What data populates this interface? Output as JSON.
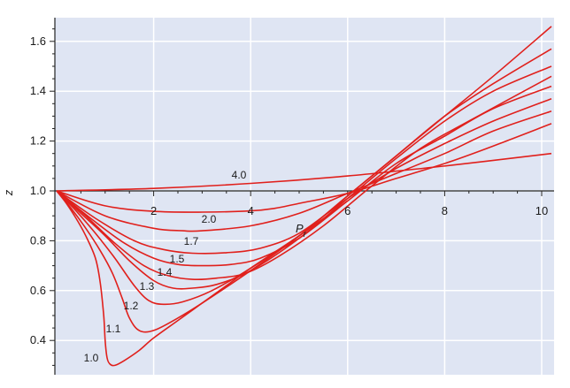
{
  "chart_data": {
    "type": "line",
    "xlabel": "P",
    "xlabel_sub": "r",
    "ylabel": "z",
    "xlim": [
      0,
      10.3
    ],
    "ylim": [
      0.26,
      1.68
    ],
    "x_ticks": [
      2,
      4,
      6,
      8,
      10
    ],
    "x_tick_labels": [
      "2",
      "4",
      "6",
      "8",
      "10"
    ],
    "y_ticks": [
      0.4,
      0.6,
      0.8,
      1.0,
      1.2,
      1.4,
      1.6
    ],
    "y_tick_labels": [
      "0.4",
      "0.6",
      "0.8",
      "1.0",
      "1.2",
      "1.4",
      "1.6"
    ],
    "grid": true,
    "colors": {
      "line": "#e0201c",
      "plot_bg": "#dfe5f3",
      "grid": "#ffffff",
      "axis": "#222222"
    },
    "series": [
      {
        "name": "4.0",
        "x": [
          0,
          2,
          4,
          6,
          8,
          10.2
        ],
        "y": [
          1.0,
          1.01,
          1.03,
          1.06,
          1.1,
          1.15
        ]
      },
      {
        "name": "",
        "x": [
          0,
          1,
          2,
          3,
          4,
          4.5,
          5,
          6,
          7,
          8,
          9,
          10.2
        ],
        "y": [
          1.0,
          0.94,
          0.918,
          0.915,
          0.92,
          0.93,
          0.95,
          0.99,
          1.05,
          1.11,
          1.18,
          1.27
        ]
      },
      {
        "name": "2.0",
        "x": [
          0,
          1,
          2,
          2.6,
          3,
          4,
          5,
          6,
          7,
          8,
          9,
          10.2
        ],
        "y": [
          1.0,
          0.9,
          0.85,
          0.84,
          0.84,
          0.86,
          0.91,
          0.99,
          1.07,
          1.15,
          1.24,
          1.32
        ]
      },
      {
        "name": "1.7",
        "x": [
          0,
          0.8,
          1.6,
          2.2,
          2.8,
          3.5,
          4.2,
          5,
          6,
          7,
          8,
          9,
          10.2
        ],
        "y": [
          1.0,
          0.89,
          0.8,
          0.765,
          0.75,
          0.752,
          0.77,
          0.83,
          0.97,
          1.09,
          1.19,
          1.28,
          1.37
        ]
      },
      {
        "name": "1.5",
        "x": [
          0,
          0.7,
          1.4,
          2,
          2.5,
          3,
          3.6,
          4.2,
          5,
          6,
          7,
          8,
          9,
          10.2
        ],
        "y": [
          1.0,
          0.89,
          0.79,
          0.73,
          0.705,
          0.7,
          0.705,
          0.73,
          0.81,
          0.96,
          1.11,
          1.22,
          1.33,
          1.42
        ]
      },
      {
        "name": "1.4",
        "x": [
          0,
          0.6,
          1.2,
          1.8,
          2.3,
          2.8,
          3.3,
          3.9,
          4.6,
          5.5,
          6.5,
          7.5,
          8.5,
          10.2
        ],
        "y": [
          1.0,
          0.9,
          0.79,
          0.7,
          0.66,
          0.645,
          0.65,
          0.67,
          0.74,
          0.86,
          1.02,
          1.17,
          1.28,
          1.46
        ]
      },
      {
        "name": "1.3",
        "x": [
          0,
          0.5,
          1,
          1.5,
          2,
          2.4,
          2.8,
          3.3,
          4,
          5,
          6,
          7,
          8,
          9,
          10.2
        ],
        "y": [
          1.0,
          0.91,
          0.82,
          0.72,
          0.64,
          0.61,
          0.61,
          0.625,
          0.68,
          0.81,
          0.97,
          1.13,
          1.28,
          1.4,
          1.5
        ]
      },
      {
        "name": "1.2",
        "x": [
          0,
          0.4,
          0.8,
          1.2,
          1.6,
          1.9,
          2.2,
          2.6,
          3.2,
          4,
          5,
          6,
          7,
          8,
          9,
          10.2
        ],
        "y": [
          1.0,
          0.92,
          0.83,
          0.73,
          0.62,
          0.56,
          0.545,
          0.555,
          0.6,
          0.69,
          0.82,
          0.98,
          1.14,
          1.3,
          1.43,
          1.57
        ]
      },
      {
        "name": "1.1",
        "x": [
          0,
          0.3,
          0.6,
          0.9,
          1.15,
          1.35,
          1.5,
          1.7,
          2,
          2.5,
          3,
          4,
          5,
          6,
          7,
          8,
          9,
          10.2
        ],
        "y": [
          1.0,
          0.93,
          0.85,
          0.76,
          0.67,
          0.57,
          0.49,
          0.44,
          0.44,
          0.49,
          0.55,
          0.68,
          0.82,
          0.98,
          1.14,
          1.3,
          1.46,
          1.66
        ]
      },
      {
        "name": "1.0",
        "x": [
          0,
          0.2,
          0.4,
          0.6,
          0.8,
          0.9,
          0.97,
          1.0,
          1.04,
          1.1,
          1.2,
          1.4,
          1.7,
          2,
          2.5,
          3,
          3.5,
          4,
          5,
          6
        ],
        "y": [
          1.0,
          0.95,
          0.89,
          0.82,
          0.73,
          0.63,
          0.5,
          0.4,
          0.33,
          0.305,
          0.3,
          0.32,
          0.36,
          0.41,
          0.48,
          0.55,
          0.62,
          0.69,
          0.82,
          0.96
        ]
      }
    ]
  }
}
